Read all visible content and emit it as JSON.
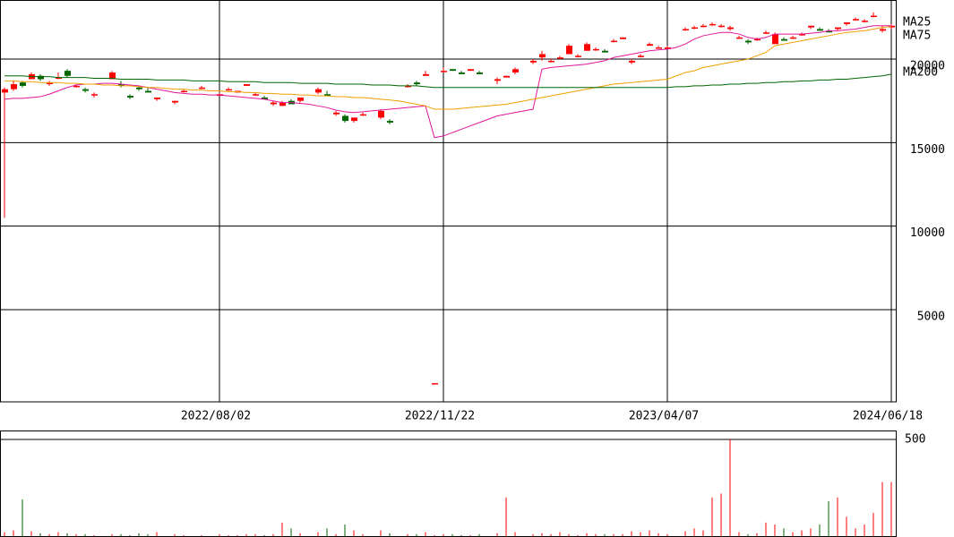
{
  "chart_data": {
    "type": "candlestick",
    "categories": [
      null,
      null,
      null,
      null,
      null,
      null,
      null,
      null,
      null,
      null,
      null,
      null,
      null,
      null,
      null,
      null,
      null,
      null,
      null,
      null,
      null,
      null,
      null,
      null,
      "2022/08/02",
      null,
      null,
      null,
      null,
      null,
      null,
      null,
      null,
      null,
      null,
      null,
      null,
      null,
      null,
      null,
      null,
      null,
      null,
      null,
      null,
      null,
      null,
      null,
      null,
      "2022/11/22",
      null,
      null,
      null,
      null,
      null,
      null,
      null,
      null,
      null,
      null,
      null,
      null,
      null,
      null,
      null,
      null,
      null,
      null,
      null,
      null,
      null,
      null,
      null,
      null,
      "2023/04/07",
      null,
      null,
      null,
      null,
      null,
      null,
      null,
      null,
      null,
      null,
      null,
      null,
      null,
      null,
      null,
      null,
      null,
      null,
      null,
      null,
      null,
      null,
      null,
      null,
      "2024/06/18"
    ],
    "ylim": [
      -520,
      23540
    ],
    "yticks": [
      5000,
      10000,
      15000,
      20000
    ],
    "up_color": "#ff0000",
    "down_color": "#006600",
    "open": [
      18000,
      18200,
      18600,
      18800,
      19000,
      18500,
      18900,
      19300,
      18400,
      18200,
      17900,
      null,
      18800,
      18500,
      17800,
      18300,
      18100,
      17600,
      null,
      17400,
      18100,
      null,
      18300,
      null,
      17800,
      18200,
      18000,
      18400,
      17900,
      17700,
      17300,
      17200,
      17500,
      17500,
      null,
      18000,
      17900,
      16700,
      16600,
      16300,
      16700,
      null,
      16500,
      16300,
      null,
      18400,
      18600,
      19000,
      600,
      19300,
      19400,
      19200,
      19300,
      19200,
      null,
      18700,
      18900,
      19200,
      null,
      19800,
      20100,
      19900,
      20100,
      20300,
      20200,
      20500,
      20600,
      20500,
      21100,
      21200,
      19800,
      20200,
      20800,
      20700,
      20700,
      null,
      21800,
      21900,
      22000,
      22100,
      22000,
      21800,
      21300,
      21100,
      21200,
      21600,
      20900,
      21200,
      21300,
      21500,
      21900,
      21800,
      21700,
      21800,
      22100,
      22400,
      22300,
      22600,
      21700,
      21900
    ],
    "high": [
      18300,
      18700,
      18700,
      19200,
      19100,
      18700,
      19200,
      19400,
      18500,
      18300,
      18000,
      null,
      19300,
      18700,
      17900,
      18400,
      18300,
      17700,
      null,
      17500,
      18200,
      null,
      18400,
      null,
      18000,
      18300,
      18100,
      18500,
      18000,
      17800,
      17500,
      17500,
      17600,
      17700,
      null,
      18300,
      18100,
      16900,
      16700,
      16500,
      16800,
      null,
      17000,
      16400,
      null,
      18500,
      18700,
      19300,
      600,
      19500,
      19400,
      19300,
      19400,
      19300,
      null,
      18900,
      19000,
      19500,
      null,
      20000,
      20500,
      20000,
      20200,
      20900,
      20300,
      21000,
      20700,
      20600,
      21200,
      21300,
      20000,
      20300,
      21000,
      20800,
      20800,
      null,
      21900,
      22000,
      22100,
      22200,
      22100,
      22000,
      21400,
      21200,
      21300,
      21700,
      21600,
      21300,
      21400,
      21600,
      22000,
      21900,
      21800,
      21900,
      22200,
      22500,
      22400,
      22800,
      22000,
      22100
    ],
    "low": [
      10500,
      18100,
      18300,
      18800,
      18700,
      18400,
      18800,
      18900,
      18300,
      18000,
      17700,
      null,
      18800,
      18300,
      17600,
      18100,
      18000,
      17500,
      null,
      17300,
      18000,
      null,
      18200,
      null,
      17800,
      18100,
      18000,
      18400,
      17800,
      17600,
      17200,
      17200,
      17300,
      17400,
      null,
      17900,
      17800,
      16600,
      16200,
      16200,
      16600,
      null,
      16400,
      16100,
      null,
      18300,
      18400,
      19000,
      600,
      19200,
      19300,
      19100,
      19300,
      19100,
      null,
      18500,
      18900,
      19100,
      null,
      19700,
      19900,
      19800,
      20000,
      20300,
      20100,
      20500,
      20500,
      20400,
      21000,
      21200,
      19700,
      20100,
      20800,
      20700,
      20700,
      null,
      21700,
      21800,
      21900,
      22000,
      21900,
      21700,
      21200,
      20900,
      21100,
      21500,
      20900,
      21100,
      21200,
      21400,
      21800,
      21700,
      21600,
      21700,
      22000,
      22300,
      22200,
      22500,
      21600,
      21800
    ],
    "close": [
      18200,
      18500,
      18400,
      19100,
      18800,
      18600,
      18900,
      19000,
      18400,
      18100,
      17900,
      null,
      19200,
      18400,
      17700,
      18200,
      18000,
      17700,
      null,
      17500,
      18100,
      null,
      18300,
      null,
      17900,
      18200,
      18100,
      18500,
      17900,
      17600,
      17400,
      17400,
      17300,
      17700,
      null,
      18200,
      17800,
      16800,
      16300,
      16500,
      16700,
      null,
      16900,
      16200,
      null,
      18400,
      18500,
      19100,
      600,
      19300,
      19300,
      19100,
      19400,
      19100,
      null,
      18800,
      19000,
      19400,
      null,
      19900,
      20300,
      19900,
      20100,
      20800,
      20200,
      20900,
      20600,
      20400,
      21100,
      21300,
      19900,
      20200,
      20900,
      20700,
      20700,
      null,
      21800,
      21900,
      22000,
      22100,
      22000,
      21900,
      21300,
      21000,
      21200,
      21600,
      21500,
      21100,
      21300,
      21500,
      22000,
      21700,
      21600,
      21900,
      22200,
      22400,
      22300,
      22600,
      21800,
      22000
    ],
    "ma_lines": [
      {
        "name": "MA25",
        "color": "#e0169a",
        "values": [
          17600,
          17650,
          17650,
          17700,
          17750,
          17900,
          18100,
          18300,
          18450,
          18500,
          18500,
          18550,
          18550,
          18500,
          18450,
          18400,
          18300,
          18200,
          18100,
          18000,
          17950,
          17900,
          17900,
          17850,
          17850,
          17800,
          17750,
          17700,
          17650,
          17600,
          17500,
          17400,
          17400,
          17350,
          17300,
          17200,
          17100,
          16950,
          16850,
          16800,
          16850,
          16900,
          16950,
          17000,
          17050,
          17100,
          17150,
          17200,
          15300,
          15400,
          15600,
          15800,
          16000,
          16200,
          16400,
          16600,
          16700,
          16800,
          16900,
          17000,
          19400,
          19500,
          19550,
          19600,
          19650,
          19700,
          19800,
          19900,
          20100,
          20200,
          20300,
          20400,
          20500,
          20550,
          20600,
          20700,
          20900,
          21200,
          21400,
          21500,
          21600,
          21600,
          21500,
          21300,
          21200,
          21300,
          21500,
          21500,
          21500,
          21500,
          21550,
          21600,
          21700,
          21700,
          21750,
          21800,
          21900,
          22000,
          22000,
          22000
        ]
      },
      {
        "name": "MA75",
        "color": "#f0a000",
        "values": [
          18700,
          18700,
          18650,
          18650,
          18600,
          18600,
          18600,
          18550,
          18550,
          18500,
          18500,
          18450,
          18450,
          18400,
          18400,
          18350,
          18300,
          18300,
          18250,
          18200,
          18200,
          18150,
          18150,
          18100,
          18100,
          18050,
          18050,
          18000,
          18000,
          17950,
          17950,
          17900,
          17900,
          17850,
          17850,
          17800,
          17800,
          17750,
          17750,
          17700,
          17700,
          17650,
          17600,
          17550,
          17500,
          17400,
          17300,
          17200,
          17000,
          17000,
          17000,
          17050,
          17100,
          17150,
          17200,
          17250,
          17300,
          17400,
          17500,
          17600,
          17700,
          17800,
          17900,
          18000,
          18100,
          18200,
          18300,
          18400,
          18500,
          18550,
          18600,
          18650,
          18700,
          18750,
          18800,
          19000,
          19200,
          19300,
          19500,
          19600,
          19700,
          19800,
          19900,
          20000,
          20200,
          20400,
          20800,
          20900,
          21000,
          21100,
          21200,
          21300,
          21400,
          21500,
          21600,
          21650,
          21700,
          21800,
          21900,
          21950
        ]
      },
      {
        "name": "MA200",
        "color": "#006600",
        "values": [
          19000,
          19000,
          19000,
          18950,
          18950,
          18950,
          18900,
          18900,
          18900,
          18900,
          18850,
          18850,
          18850,
          18800,
          18800,
          18800,
          18800,
          18750,
          18750,
          18750,
          18750,
          18700,
          18700,
          18700,
          18700,
          18650,
          18650,
          18650,
          18650,
          18600,
          18600,
          18600,
          18600,
          18550,
          18550,
          18550,
          18550,
          18500,
          18500,
          18500,
          18500,
          18450,
          18450,
          18450,
          18400,
          18400,
          18400,
          18350,
          18300,
          18300,
          18300,
          18300,
          18300,
          18300,
          18300,
          18300,
          18300,
          18300,
          18300,
          18300,
          18300,
          18300,
          18300,
          18300,
          18300,
          18300,
          18300,
          18300,
          18300,
          18300,
          18300,
          18300,
          18300,
          18300,
          18300,
          18350,
          18350,
          18400,
          18400,
          18450,
          18450,
          18500,
          18500,
          18550,
          18550,
          18600,
          18600,
          18650,
          18650,
          18700,
          18700,
          18750,
          18750,
          18800,
          18800,
          18850,
          18900,
          18950,
          19000,
          19100
        ]
      }
    ],
    "volume": {
      "ylim": [
        0,
        546
      ],
      "yticks": [
        500
      ],
      "values": [
        20,
        30,
        190,
        25,
        15,
        10,
        20,
        15,
        10,
        10,
        5,
        0,
        10,
        10,
        5,
        15,
        10,
        20,
        0,
        10,
        5,
        0,
        5,
        0,
        10,
        5,
        5,
        10,
        10,
        5,
        10,
        70,
        40,
        15,
        0,
        20,
        40,
        10,
        60,
        30,
        10,
        0,
        30,
        15,
        0,
        10,
        10,
        20,
        5,
        10,
        10,
        5,
        5,
        10,
        0,
        15,
        200,
        20,
        0,
        10,
        15,
        10,
        20,
        10,
        5,
        15,
        10,
        10,
        10,
        10,
        25,
        20,
        30,
        15,
        10,
        0,
        25,
        40,
        30,
        200,
        220,
        500,
        20,
        10,
        15,
        70,
        60,
        40,
        20,
        30,
        40,
        60,
        180,
        200,
        100,
        40,
        60,
        120,
        280,
        280
      ]
    }
  }
}
